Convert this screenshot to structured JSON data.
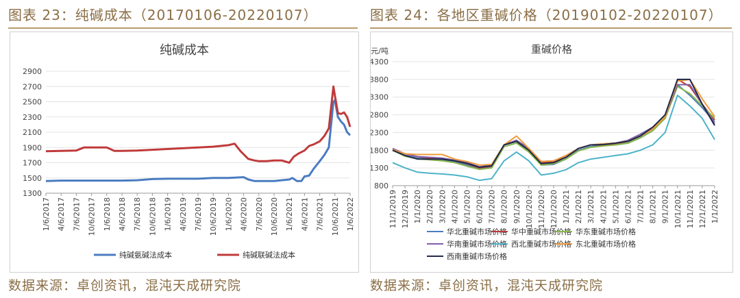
{
  "header": {
    "left": "图表 23：纯碱成本（20170106-20220107）",
    "right": "图表 24：各地区重碱价格（20190102-20220107）"
  },
  "source": {
    "left": "数据来源：卓创资讯，混沌天成研究院",
    "right": "数据来源：卓创资讯，混沌天成研究院"
  },
  "chart_data": [
    {
      "type": "line",
      "title": "纯碱成本",
      "ylim": [
        1300,
        2900
      ],
      "yticks": [
        1300,
        1500,
        1700,
        1900,
        2100,
        2300,
        2500,
        2700,
        2900
      ],
      "xticks": [
        "1/6/2017",
        "4/6/2017",
        "7/6/2017",
        "10/6/2017",
        "1/6/2018",
        "4/6/2018",
        "7/6/2018",
        "10/6/2018",
        "1/6/2019",
        "4/6/2019",
        "7/6/2019",
        "10/6/2019",
        "1/6/2020",
        "4/6/2020",
        "7/6/2020",
        "10/6/2020",
        "1/6/2021",
        "4/6/2021",
        "7/6/2021",
        "10/6/2021",
        "1/6/2022"
      ],
      "legend_position": "bottom",
      "series": [
        {
          "name": "纯碱氨碱法成本",
          "color": "#4a7cc0",
          "x": [
            0,
            1,
            2,
            3,
            4,
            5,
            6,
            7,
            8,
            9,
            10,
            11,
            12,
            13,
            13.3,
            13.7,
            14,
            14.5,
            15,
            15.5,
            16,
            16.2,
            16.5,
            16.8,
            17,
            17.3,
            17.6,
            18,
            18.3,
            18.6,
            18.9,
            19,
            19.2,
            19.4,
            19.6,
            19.8,
            20
          ],
          "y": [
            1460,
            1465,
            1465,
            1465,
            1465,
            1465,
            1470,
            1485,
            1490,
            1490,
            1490,
            1500,
            1500,
            1510,
            1480,
            1460,
            1460,
            1460,
            1460,
            1470,
            1480,
            1500,
            1460,
            1460,
            1520,
            1530,
            1620,
            1720,
            1800,
            1900,
            2500,
            2520,
            2300,
            2240,
            2200,
            2100,
            2060
          ]
        },
        {
          "name": "纯碱联碱法成本",
          "color": "#c03a3a",
          "x": [
            0,
            1,
            2,
            2.5,
            3,
            4,
            4.5,
            5,
            6,
            7,
            8,
            9,
            10,
            11,
            12,
            12.4,
            12.8,
            13.3,
            13.7,
            14,
            14.5,
            15,
            15.5,
            16,
            16.3,
            16.6,
            17,
            17.3,
            17.6,
            18,
            18.3,
            18.6,
            18.9,
            19,
            19.2,
            19.4,
            19.6,
            19.8,
            20
          ],
          "y": [
            1850,
            1855,
            1860,
            1900,
            1900,
            1900,
            1855,
            1855,
            1860,
            1870,
            1880,
            1890,
            1900,
            1910,
            1930,
            1950,
            1850,
            1750,
            1730,
            1720,
            1720,
            1730,
            1730,
            1700,
            1780,
            1820,
            1860,
            1920,
            1940,
            1980,
            2050,
            2150,
            2700,
            2580,
            2350,
            2340,
            2360,
            2300,
            2170
          ]
        }
      ]
    },
    {
      "type": "line",
      "title": "重碱价格",
      "ylabel": "元/吨",
      "ylim": [
        800,
        4300
      ],
      "yticks": [
        800,
        1300,
        1800,
        2300,
        2800,
        3300,
        3800,
        4300
      ],
      "xticks": [
        "11/1/2019",
        "12/1/2019",
        "1/1/2020",
        "2/1/2020",
        "3/1/2020",
        "4/1/2020",
        "5/1/2020",
        "6/1/2020",
        "7/1/2020",
        "8/1/2020",
        "9/1/2020",
        "10/1/2020",
        "11/1/2020",
        "12/1/2020",
        "1/1/2021",
        "2/1/2021",
        "3/1/2021",
        "4/1/2021",
        "5/1/2021",
        "6/1/2021",
        "7/1/2021",
        "8/1/2021",
        "9/1/2021",
        "10/1/2021",
        "11/1/2021",
        "12/1/2021",
        "1/1/2022"
      ],
      "legend_position": "bottom",
      "series": [
        {
          "name": "华北重碱市场价格",
          "color": "#4a7cc0",
          "x": [
            0,
            1,
            2,
            3,
            4,
            5,
            6,
            7,
            8,
            9,
            10,
            11,
            12,
            13,
            14,
            15,
            16,
            17,
            18,
            19,
            20,
            21,
            22,
            23,
            24,
            25,
            26
          ],
          "y": [
            1800,
            1650,
            1580,
            1550,
            1520,
            1480,
            1380,
            1280,
            1330,
            1950,
            2050,
            1800,
            1380,
            1400,
            1550,
            1800,
            1900,
            1950,
            1950,
            2000,
            2150,
            2350,
            2700,
            3650,
            3350,
            3000,
            2600
          ]
        },
        {
          "name": "华中重碱市场价格",
          "color": "#c03a3a",
          "x": [
            0,
            1,
            2,
            3,
            4,
            5,
            6,
            7,
            8,
            9,
            10,
            11,
            12,
            13,
            14,
            15,
            16,
            17,
            18,
            19,
            20,
            21,
            22,
            23,
            24,
            25,
            26
          ],
          "y": [
            1820,
            1700,
            1620,
            1580,
            1560,
            1500,
            1420,
            1300,
            1350,
            1950,
            2080,
            1850,
            1450,
            1480,
            1600,
            1850,
            1950,
            1950,
            1980,
            2050,
            2200,
            2400,
            2700,
            3800,
            3600,
            3100,
            2650
          ]
        },
        {
          "name": "华东重碱市场价格",
          "color": "#8ab84a",
          "x": [
            0,
            1,
            2,
            3,
            4,
            5,
            6,
            7,
            8,
            9,
            10,
            11,
            12,
            13,
            14,
            15,
            16,
            17,
            18,
            19,
            20,
            21,
            22,
            23,
            24,
            25,
            26
          ],
          "y": [
            1800,
            1630,
            1560,
            1530,
            1500,
            1450,
            1350,
            1260,
            1300,
            1900,
            2000,
            1750,
            1380,
            1420,
            1550,
            1780,
            1880,
            1920,
            1950,
            2000,
            2150,
            2350,
            2700,
            3600,
            3400,
            3050,
            2700
          ]
        },
        {
          "name": "华南重碱市场价格",
          "color": "#7f5fa8",
          "x": [
            0,
            1,
            2,
            3,
            4,
            5,
            6,
            7,
            8,
            9,
            10,
            11,
            12,
            13,
            14,
            15,
            16,
            17,
            18,
            19,
            20,
            21,
            22,
            23,
            24,
            25,
            26
          ],
          "y": [
            1850,
            1700,
            1620,
            1600,
            1580,
            1520,
            1450,
            1330,
            1380,
            1950,
            2080,
            1850,
            1480,
            1500,
            1650,
            1850,
            1950,
            1980,
            2000,
            2080,
            2250,
            2450,
            2750,
            3650,
            3650,
            3100,
            2550
          ]
        },
        {
          "name": "西北重碱市场价格",
          "color": "#4bb3c8",
          "x": [
            0,
            1,
            2,
            3,
            4,
            5,
            6,
            7,
            8,
            9,
            10,
            11,
            12,
            13,
            14,
            15,
            16,
            17,
            18,
            19,
            20,
            21,
            22,
            23,
            24,
            25,
            26
          ],
          "y": [
            1450,
            1300,
            1180,
            1150,
            1130,
            1100,
            1050,
            950,
            1000,
            1500,
            1750,
            1500,
            1100,
            1150,
            1250,
            1450,
            1550,
            1600,
            1650,
            1700,
            1800,
            1950,
            2300,
            3350,
            3050,
            2700,
            2100
          ]
        },
        {
          "name": "东北重碱市场价格",
          "color": "#f09a3a",
          "x": [
            0,
            1,
            2,
            3,
            4,
            5,
            6,
            7,
            8,
            9,
            10,
            11,
            12,
            13,
            14,
            15,
            16,
            17,
            18,
            19,
            20,
            21,
            22,
            23,
            24,
            25,
            26
          ],
          "y": [
            1820,
            1700,
            1680,
            1680,
            1680,
            1550,
            1480,
            1380,
            1400,
            1950,
            2200,
            1850,
            1480,
            1500,
            1650,
            1850,
            1950,
            1980,
            2000,
            2050,
            2200,
            2400,
            2750,
            3750,
            3800,
            3250,
            2750
          ]
        },
        {
          "name": "西南重碱市场价格",
          "color": "#1f2a4a",
          "x": [
            0,
            1,
            2,
            3,
            4,
            5,
            6,
            7,
            8,
            9,
            10,
            11,
            12,
            13,
            14,
            15,
            16,
            17,
            18,
            19,
            20,
            21,
            22,
            23,
            24,
            25,
            26
          ],
          "y": [
            1800,
            1650,
            1550,
            1550,
            1550,
            1500,
            1430,
            1320,
            1360,
            1950,
            2050,
            1800,
            1420,
            1450,
            1600,
            1850,
            1950,
            1960,
            2000,
            2050,
            2200,
            2450,
            2800,
            3800,
            3800,
            3100,
            2500
          ]
        }
      ]
    }
  ]
}
